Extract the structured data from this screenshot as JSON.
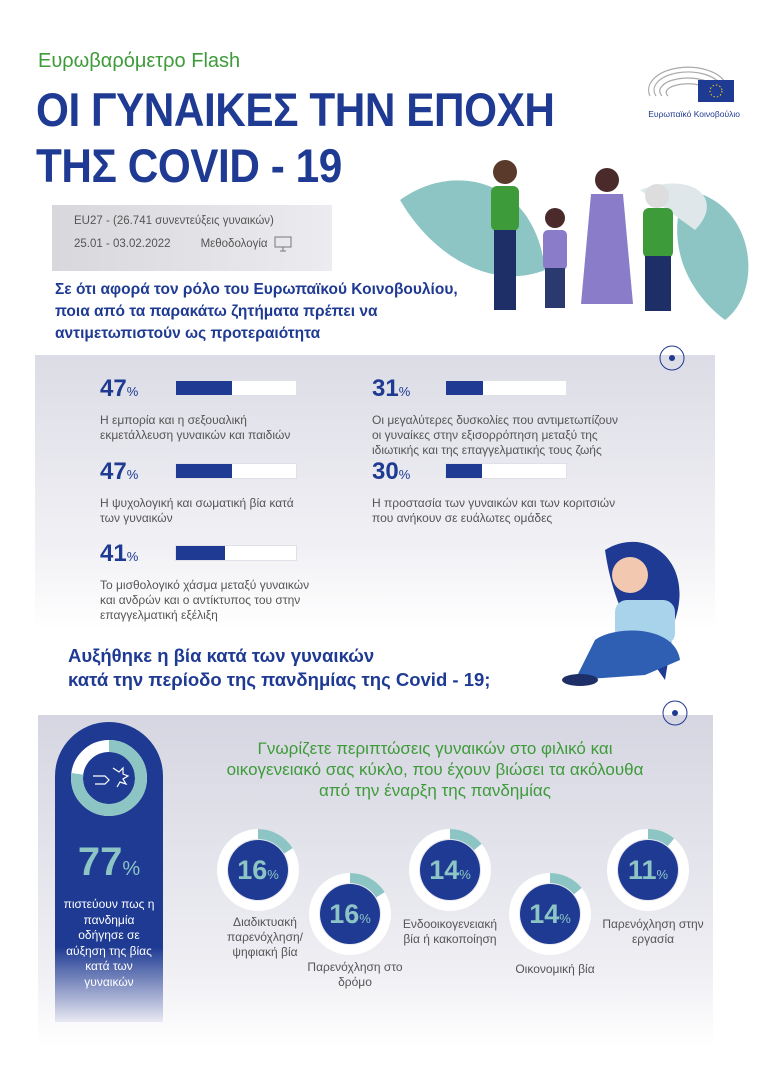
{
  "header": {
    "kicker": "Ευρωβαρόμετρο Flash",
    "title_line1": "ΟΙ ΓΥΝΑΙΚΕΣ ΤΗΝ ΕΠΟΧΗ",
    "title_line2": "ΤΗΣ COVID - 19",
    "logo_text": "Ευρωπαϊκό Κοινοβούλιο"
  },
  "info": {
    "sample": "EU27 - (26.741 συνεντεύξεις γυναικών)",
    "dates": "25.01 - 03.02.2022",
    "methodology": "Μεθοδολογία"
  },
  "priorities": {
    "question": "Σε ότι αφορά τον ρόλο του Ευρωπαϊκού Κοινοβουλίου, ποια από τα παρακάτω ζητήματα πρέπει να αντιμετωπιστούν ως προτεραιότητα",
    "items": [
      {
        "value": 47,
        "unit": "%",
        "label": "Η εμπορία και η σεξουαλική εκμετάλλευση γυναικών και παιδιών"
      },
      {
        "value": 47,
        "unit": "%",
        "label": "Η ψυχολογική και σωματική βία κατά των γυναικών"
      },
      {
        "value": 41,
        "unit": "%",
        "label": "Το μισθολογικό χάσμα μεταξύ γυναικών και ανδρών και ο αντίκτυπος του στην επαγγελματική εξέλιξη"
      },
      {
        "value": 31,
        "unit": "%",
        "label": "Οι μεγαλύτερες δυσκολίες που αντιμετωπίζουν οι γυναίκες στην εξισορρόπηση μεταξύ της ιδιωτικής και της επαγγελματικής τους ζωής"
      },
      {
        "value": 30,
        "unit": "%",
        "label": "Η προστασία των γυναικών και των κοριτσιών που ανήκουν σε ευάλωτες ομάδες"
      }
    ]
  },
  "violence": {
    "heading_line1": "Αυξήθηκε η βία κατά των γυναικών",
    "heading_line2": "κατά την περίοδο της πανδημίας της Covid - 19;",
    "main_value": 77,
    "main_unit": "%",
    "main_label": "πιστεύουν πως η πανδημία οδήγησε σε αύξηση της βίας κατά των γυναικών",
    "question": "Γνωρίζετε περιπτώσεις γυναικών στο φιλικό και οικογενειακό σας κύκλο, που έχουν βιώσει τα ακόλουθα από την έναρξη της πανδημίας",
    "items": [
      {
        "value": 16,
        "unit": "%",
        "label": "Διαδικτυακή παρενόχληση/ ψηφιακή βία"
      },
      {
        "value": 16,
        "unit": "%",
        "label": "Παρενόχληση στο δρόμο"
      },
      {
        "value": 14,
        "unit": "%",
        "label": "Ενδοοικογενειακή βία ή κακοποίηση"
      },
      {
        "value": 14,
        "unit": "%",
        "label": "Οικονομική βία"
      },
      {
        "value": 11,
        "unit": "%",
        "label": "Παρενόχληση στην εργασία"
      }
    ]
  },
  "colors": {
    "blue": "#1e3a93",
    "green": "#3e9b3a",
    "teal": "#8dc5c4"
  }
}
